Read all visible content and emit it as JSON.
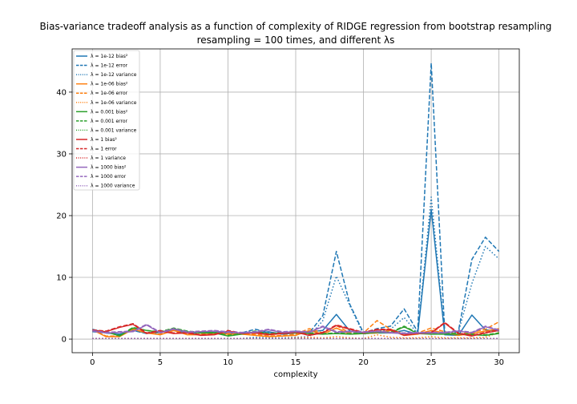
{
  "chart_data": {
    "type": "line",
    "title_line1": "Bias-variance tradeoff analysis as a function of complexity of RIDGE regression from bootstrap resampling",
    "title_line2": "resampling = 100 times, and different λs",
    "xlabel": "complexity",
    "ylabel": "",
    "xlim": [
      -1.5,
      31.5
    ],
    "ylim": [
      -2.2,
      47.0
    ],
    "xticks": [
      0,
      5,
      10,
      15,
      20,
      25,
      30
    ],
    "yticks": [
      0,
      10,
      20,
      30,
      40
    ],
    "grid": true,
    "legend_position": "upper-left",
    "x": [
      0,
      1,
      2,
      3,
      4,
      5,
      6,
      7,
      8,
      9,
      10,
      11,
      12,
      13,
      14,
      15,
      16,
      17,
      18,
      19,
      20,
      21,
      22,
      23,
      24,
      25,
      26,
      27,
      28,
      29,
      30
    ],
    "lambdas": [
      {
        "name": "1e-12",
        "color": "#1f77b4",
        "bias2": [
          1.6,
          1.0,
          0.8,
          1.4,
          1.0,
          1.2,
          1.4,
          1.0,
          1.1,
          1.1,
          0.9,
          1.0,
          1.0,
          1.2,
          0.8,
          1.0,
          1.2,
          1.4,
          4.0,
          1.3,
          0.9,
          1.0,
          1.0,
          1.4,
          0.8,
          21.0,
          0.7,
          0.6,
          3.9,
          1.5,
          1.3
        ],
        "error": [
          1.2,
          1.0,
          0.8,
          1.4,
          0.9,
          1.1,
          1.5,
          1.0,
          1.0,
          1.1,
          0.9,
          1.0,
          1.6,
          1.1,
          0.9,
          1.3,
          1.0,
          3.8,
          14.2,
          5.6,
          1.0,
          1.7,
          2.1,
          4.9,
          1.2,
          44.7,
          1.0,
          1.2,
          12.9,
          16.5,
          14.2
        ],
        "variance": [
          0.1,
          0.1,
          0.1,
          0.1,
          0.1,
          0.1,
          0.1,
          0.1,
          0.1,
          0.1,
          0.1,
          0.1,
          0.3,
          0.2,
          0.2,
          0.3,
          0.4,
          3.0,
          10.2,
          5.4,
          0.8,
          1.2,
          1.6,
          3.5,
          0.9,
          23.0,
          0.9,
          1.1,
          9.0,
          15.0,
          13.0
        ]
      },
      {
        "name": "1e-06",
        "color": "#ff7f0e",
        "bias2": [
          1.5,
          0.4,
          0.4,
          1.6,
          1.0,
          0.7,
          1.4,
          0.7,
          0.7,
          0.9,
          0.8,
          0.8,
          0.6,
          0.4,
          0.5,
          0.6,
          1.4,
          0.8,
          1.8,
          0.8,
          0.9,
          1.0,
          1.4,
          0.6,
          0.8,
          1.4,
          1.0,
          0.6,
          0.9,
          1.3,
          1.7
        ],
        "error": [
          1.5,
          0.5,
          0.5,
          1.7,
          1.0,
          0.8,
          1.5,
          0.8,
          0.8,
          1.0,
          0.9,
          0.9,
          0.8,
          0.5,
          0.6,
          0.8,
          1.7,
          1.0,
          2.2,
          1.0,
          1.0,
          3.0,
          1.6,
          0.8,
          1.0,
          1.8,
          1.2,
          0.8,
          1.1,
          1.6,
          2.8
        ],
        "variance": [
          0.1,
          0.1,
          0.1,
          0.1,
          0.1,
          0.1,
          0.1,
          0.1,
          0.1,
          0.1,
          0.1,
          0.1,
          0.1,
          0.1,
          0.1,
          0.2,
          0.3,
          0.2,
          0.4,
          0.2,
          0.1,
          0.7,
          0.3,
          0.2,
          0.2,
          0.4,
          0.2,
          0.2,
          0.2,
          0.3,
          1.1
        ]
      },
      {
        "name": "0.001",
        "color": "#2ca02c",
        "bias2": [
          1.3,
          1.2,
          0.5,
          1.8,
          1.4,
          1.1,
          1.7,
          1.2,
          1.0,
          1.0,
          0.5,
          0.8,
          1.2,
          0.8,
          1.0,
          1.0,
          0.9,
          0.8,
          0.9,
          0.8,
          0.9,
          1.1,
          1.0,
          2.0,
          0.9,
          0.8,
          0.8,
          0.8,
          0.7,
          0.6,
          0.9
        ],
        "error": [
          1.3,
          1.2,
          0.6,
          1.9,
          1.4,
          1.2,
          1.8,
          1.3,
          1.1,
          1.1,
          0.6,
          0.9,
          1.3,
          0.9,
          1.1,
          1.1,
          1.0,
          0.9,
          1.0,
          0.9,
          1.0,
          1.2,
          1.1,
          2.1,
          1.0,
          0.9,
          0.9,
          0.9,
          0.8,
          0.7,
          1.0
        ],
        "variance": [
          0.1,
          0.1,
          0.1,
          0.1,
          0.1,
          0.1,
          0.1,
          0.1,
          0.1,
          0.1,
          0.1,
          0.1,
          0.1,
          0.1,
          0.1,
          0.1,
          0.1,
          0.1,
          0.1,
          0.1,
          0.1,
          0.1,
          0.1,
          0.1,
          0.1,
          0.1,
          0.1,
          0.1,
          0.1,
          0.1,
          0.1
        ]
      },
      {
        "name": "1",
        "color": "#d62728",
        "bias2": [
          1.4,
          1.2,
          1.9,
          2.4,
          0.9,
          1.3,
          0.9,
          1.0,
          0.6,
          0.7,
          1.3,
          0.9,
          1.0,
          0.7,
          0.9,
          1.1,
          0.6,
          1.0,
          2.2,
          1.6,
          1.0,
          1.5,
          1.5,
          0.6,
          0.9,
          1.0,
          2.6,
          0.9,
          0.5,
          1.0,
          1.4
        ],
        "error": [
          1.5,
          1.3,
          2.0,
          2.5,
          1.0,
          1.4,
          1.0,
          1.1,
          0.7,
          0.8,
          1.4,
          1.0,
          1.1,
          0.8,
          1.0,
          1.2,
          0.7,
          1.1,
          2.3,
          1.7,
          1.1,
          1.6,
          1.6,
          0.7,
          1.0,
          1.1,
          2.7,
          1.0,
          0.6,
          1.1,
          1.5
        ],
        "variance": [
          0.1,
          0.1,
          0.1,
          0.1,
          0.1,
          0.1,
          0.1,
          0.1,
          0.1,
          0.1,
          0.1,
          0.1,
          0.1,
          0.1,
          0.1,
          0.1,
          0.1,
          0.1,
          0.1,
          0.1,
          0.1,
          0.1,
          0.1,
          0.1,
          0.1,
          0.1,
          0.1,
          0.1,
          0.1,
          0.1,
          0.1
        ]
      },
      {
        "name": "1000",
        "color": "#9467bd",
        "bias2": [
          1.3,
          1.0,
          1.1,
          1.2,
          2.3,
          1.0,
          1.6,
          1.1,
          1.2,
          1.3,
          1.1,
          1.0,
          1.1,
          1.5,
          1.1,
          1.2,
          1.1,
          2.0,
          1.1,
          1.2,
          1.1,
          1.2,
          1.0,
          0.9,
          1.0,
          1.0,
          1.0,
          1.3,
          1.0,
          2.0,
          1.4
        ],
        "error": [
          1.4,
          1.1,
          1.2,
          1.3,
          2.4,
          1.1,
          1.7,
          1.2,
          1.3,
          1.4,
          1.2,
          1.1,
          1.2,
          1.6,
          1.2,
          1.3,
          1.2,
          2.1,
          1.2,
          1.3,
          1.2,
          1.3,
          1.1,
          1.0,
          1.1,
          1.1,
          1.1,
          1.4,
          1.1,
          2.1,
          1.5
        ],
        "variance": [
          0.1,
          0.1,
          0.1,
          0.1,
          0.1,
          0.1,
          0.1,
          0.1,
          0.1,
          0.1,
          0.1,
          0.1,
          0.1,
          0.1,
          0.1,
          0.1,
          0.1,
          0.1,
          0.1,
          0.1,
          0.1,
          0.1,
          0.1,
          0.1,
          0.1,
          0.1,
          0.1,
          0.1,
          0.1,
          0.1,
          0.1
        ]
      }
    ],
    "legend": [
      "λ = 1e-12 bias²",
      "λ = 1e-12 error",
      "λ = 1e-12 variance",
      "λ = 1e-06 bias²",
      "λ = 1e-06 error",
      "λ = 1e-06 variance",
      "λ = 0.001 bias²",
      "λ = 0.001 error",
      "λ = 0.001 variance",
      "λ = 1 bias²",
      "λ = 1 error",
      "λ = 1 variance",
      "λ = 1000 bias²",
      "λ = 1000 error",
      "λ = 1000 variance"
    ]
  }
}
